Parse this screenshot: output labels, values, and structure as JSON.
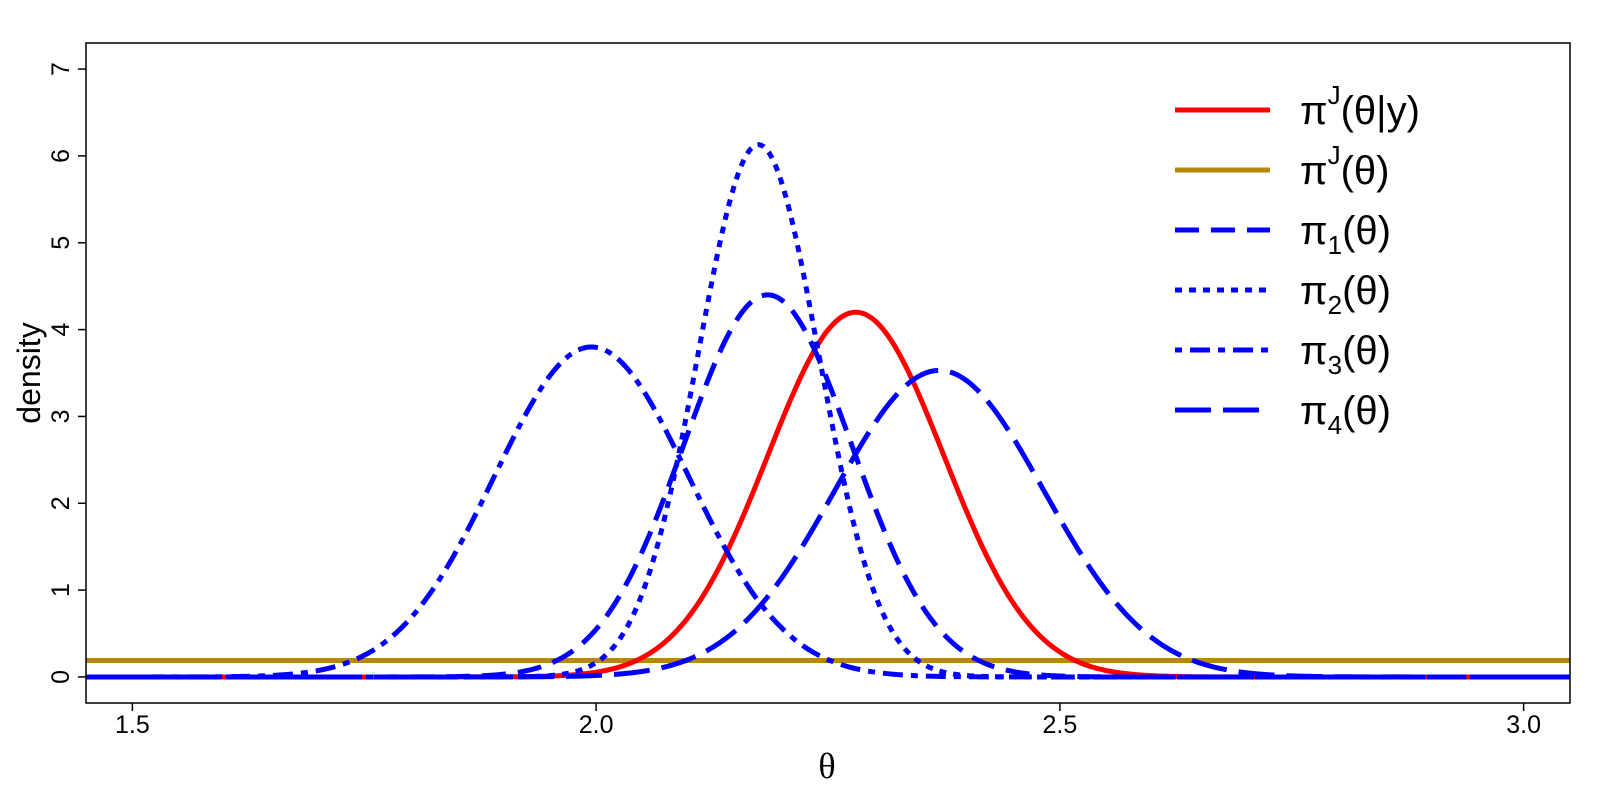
{
  "chart_data": {
    "type": "line",
    "title": "",
    "xlabel": "θ",
    "ylabel": "density",
    "xlim": [
      1.45,
      3.05
    ],
    "ylim": [
      -0.3,
      7.3
    ],
    "x_ticks": [
      1.5,
      2.0,
      2.5,
      3.0
    ],
    "x_tick_labels": [
      "1.5",
      "2.0",
      "2.5",
      "3.0"
    ],
    "y_ticks": [
      0,
      1,
      2,
      3,
      4,
      5,
      6,
      7
    ],
    "y_tick_labels": [
      "0",
      "1",
      "2",
      "3",
      "4",
      "5",
      "6",
      "7"
    ],
    "grid": false,
    "legend_position": "top-right",
    "series": [
      {
        "legend_base": "π",
        "legend_sup": "J",
        "legend_sub": "",
        "legend_rest": "(θ|y)",
        "color": "#ff0000",
        "dash": "solid",
        "kind": "normal",
        "mean": 2.28,
        "peak": 4.2
      },
      {
        "legend_base": "π",
        "legend_sup": "J",
        "legend_sub": "",
        "legend_rest": "(θ)",
        "color": "#b8860b",
        "dash": "solid",
        "kind": "constant",
        "value": 0.19
      },
      {
        "legend_base": "π",
        "legend_sup": "",
        "legend_sub": "1",
        "legend_rest": "(θ)",
        "color": "#0000ff",
        "dash": "dashed",
        "kind": "normal",
        "mean": 2.185,
        "peak": 4.4
      },
      {
        "legend_base": "π",
        "legend_sup": "",
        "legend_sub": "2",
        "legend_rest": "(θ)",
        "color": "#0000ff",
        "dotted": true,
        "dash": "dotted",
        "kind": "normal",
        "mean": 2.175,
        "peak": 6.13
      },
      {
        "legend_base": "π",
        "legend_sup": "",
        "legend_sub": "3",
        "legend_rest": "(θ)",
        "color": "#0000ff",
        "dash": "dotdash",
        "kind": "normal",
        "mean": 1.995,
        "peak": 3.8
      },
      {
        "legend_base": "π",
        "legend_sup": "",
        "legend_sub": "4",
        "legend_rest": "(θ)",
        "color": "#0000ff",
        "dash": "longdash",
        "kind": "normal",
        "mean": 2.37,
        "peak": 3.53
      }
    ]
  }
}
